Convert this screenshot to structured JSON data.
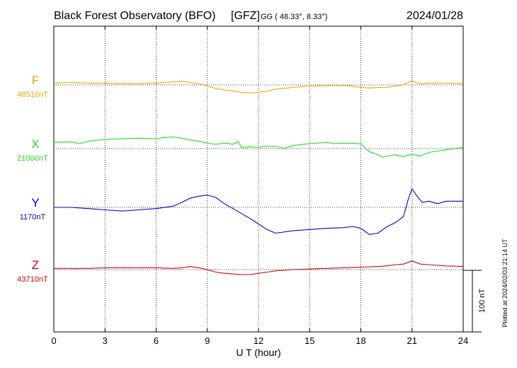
{
  "header": {
    "title": "Black Forest Observatory (BFO)",
    "org": "[GFZ]",
    "coords": "GG ( 48.33°,   8.33°)",
    "date": "2024/01/28"
  },
  "footer": {
    "plotted_at": "Plotted at 2024/02/03 21:14 UT"
  },
  "chart_data": {
    "type": "line",
    "xlabel": "U T (hour)",
    "xlim": [
      0,
      24
    ],
    "xticks": [
      "0",
      "3",
      "6",
      "9",
      "12",
      "15",
      "18",
      "21",
      "24"
    ],
    "grid": true,
    "scale_bar": {
      "value": 100,
      "label": "100 nT"
    },
    "series": [
      {
        "name": "F",
        "baseline_label": "48510nT",
        "baseline_nT": 48510,
        "color": "#f0a800",
        "x": [
          0,
          1,
          2,
          3,
          4,
          5,
          6,
          7,
          7.5,
          8,
          8.5,
          9,
          9.5,
          10,
          10.5,
          11,
          11.5,
          12,
          12.5,
          13,
          14,
          15,
          16,
          17,
          17.5,
          18,
          18.5,
          19,
          19.5,
          20,
          20.5,
          21,
          21.3,
          21.6,
          22,
          23,
          24
        ],
        "y": [
          48513,
          48514,
          48513,
          48513,
          48512,
          48512,
          48513,
          48515,
          48516,
          48514,
          48512,
          48508,
          48504,
          48502,
          48500,
          48498,
          48497,
          48498,
          48500,
          48503,
          48506,
          48508,
          48509,
          48509,
          48508,
          48506,
          48505,
          48506,
          48506,
          48508,
          48510,
          48517,
          48513,
          48512,
          48513,
          48513,
          48512
        ]
      },
      {
        "name": "X",
        "baseline_label": "21000nT",
        "baseline_nT": 21000,
        "color": "#22dd22",
        "x": [
          0,
          1,
          1.5,
          2,
          3,
          4,
          5,
          6,
          6.5,
          7,
          7.5,
          8,
          8.5,
          9,
          9.5,
          10,
          10.5,
          10.8,
          11,
          11.5,
          12,
          12.5,
          13,
          13.5,
          14,
          15,
          16,
          16.5,
          17,
          18,
          18.5,
          19,
          19.3,
          19.6,
          20,
          20.5,
          21,
          21.5,
          22,
          22.5,
          23,
          24
        ],
        "y": [
          21010,
          21011,
          21008,
          21012,
          21015,
          21016,
          21017,
          21016,
          21018,
          21019,
          21017,
          21014,
          21012,
          21009,
          21007,
          21009,
          21007,
          21012,
          21002,
          21003,
          21002,
          21004,
          21004,
          21000,
          21005,
          21008,
          21010,
          21008,
          21009,
          21008,
          20995,
          20990,
          20986,
          20988,
          20990,
          20987,
          20991,
          20988,
          20994,
          20996,
          20998,
          21002
        ]
      },
      {
        "name": "Y",
        "baseline_label": "1170nT",
        "baseline_nT": 1170,
        "color": "#0000dd",
        "x": [
          0,
          1,
          2,
          3,
          4,
          5,
          6,
          7,
          7.5,
          8,
          8.5,
          9,
          9.5,
          10,
          10.5,
          11,
          11.5,
          12,
          12.5,
          13,
          14,
          15,
          16,
          17,
          17.5,
          18,
          18.5,
          19,
          19.5,
          20,
          20.5,
          20.8,
          21,
          21.3,
          21.6,
          22,
          22.5,
          23,
          24
        ],
        "y": [
          1170,
          1170,
          1168,
          1166,
          1164,
          1166,
          1168,
          1172,
          1178,
          1185,
          1188,
          1190,
          1186,
          1176,
          1168,
          1160,
          1152,
          1143,
          1134,
          1128,
          1132,
          1134,
          1136,
          1137,
          1139,
          1136,
          1126,
          1128,
          1138,
          1145,
          1155,
          1185,
          1200,
          1188,
          1178,
          1180,
          1176,
          1180,
          1180
        ]
      },
      {
        "name": "Z",
        "baseline_label": "43710nT",
        "baseline_nT": 43710,
        "color": "#dd0000",
        "x": [
          0,
          1,
          2,
          3,
          4,
          5,
          6,
          7,
          7.5,
          8,
          8.5,
          9,
          9.5,
          10,
          10.5,
          11,
          11.5,
          12,
          12.5,
          13,
          14,
          15,
          16,
          17,
          18,
          19,
          19.5,
          20,
          20.5,
          21,
          21.5,
          22,
          23,
          24
        ],
        "y": [
          43712,
          43712,
          43712,
          43713,
          43713,
          43713,
          43713,
          43712,
          43713,
          43715,
          43713,
          43710,
          43706,
          43704,
          43703,
          43702,
          43702,
          43704,
          43706,
          43708,
          43710,
          43711,
          43712,
          43713,
          43714,
          43715,
          43716,
          43718,
          43719,
          43724,
          43719,
          43718,
          43716,
          43715
        ]
      }
    ]
  }
}
